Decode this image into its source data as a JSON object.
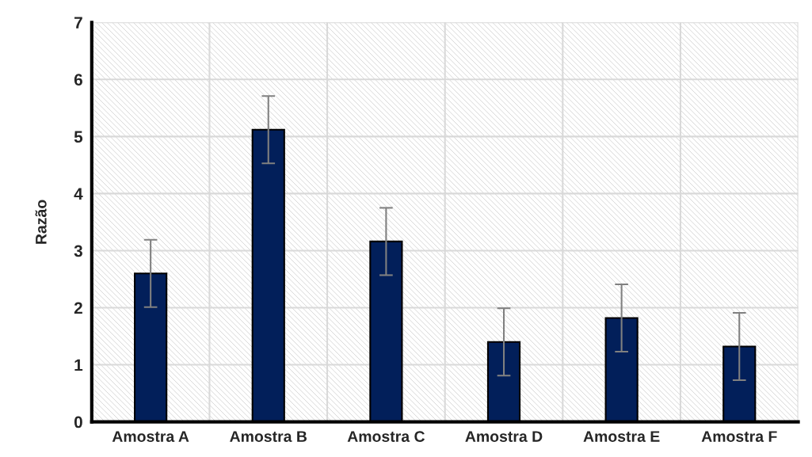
{
  "chart_data": {
    "type": "bar",
    "ylabel": "Razão",
    "categories": [
      "Amostra A",
      "Amostra B",
      "Amostra C",
      "Amostra D",
      "Amostra E",
      "Amostra F"
    ],
    "series": [
      {
        "color": "#021f5a",
        "values": [
          2.6,
          5.12,
          3.16,
          1.4,
          1.82,
          1.32
        ],
        "errors": [
          0.59,
          0.59,
          0.59,
          0.59,
          0.59,
          0.59
        ]
      }
    ],
    "ylim": [
      0,
      7
    ],
    "yticks": [
      0,
      1,
      2,
      3,
      4,
      5,
      6,
      7
    ],
    "grid": true
  }
}
